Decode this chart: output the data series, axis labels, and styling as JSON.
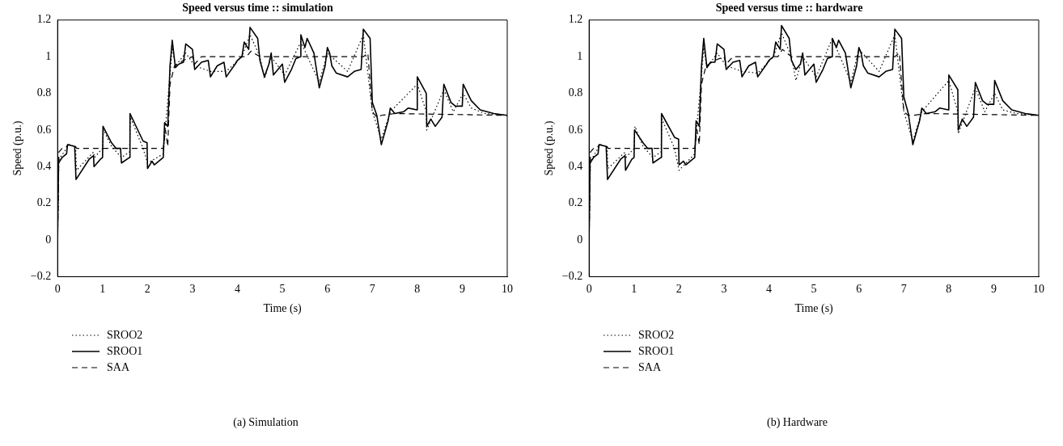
{
  "chart_data": [
    {
      "type": "line",
      "title": "Speed versus time :: simulation",
      "xlabel": "Time (s)",
      "ylabel": "Speed (p.u.)",
      "xlim": [
        0,
        10
      ],
      "xticks": [
        0,
        1,
        2,
        3,
        4,
        5,
        6,
        7,
        8,
        9,
        10
      ],
      "ylim": [
        -0.2,
        1.2
      ],
      "yticks": [
        {
          "value": -0.2,
          "label": "−0.2"
        },
        0,
        0.2,
        0.4,
        0.6,
        0.8,
        1,
        1.2
      ],
      "grid": false,
      "legend": "bottom left",
      "marker": "none",
      "annotations": [
        "(a)  Simulation"
      ],
      "series": [
        {
          "name": "SROO2",
          "color": "#000000",
          "line_style": "dotted",
          "x": [
            0,
            0.03,
            0.2,
            0.25,
            0.4,
            0.42,
            0.8,
            0.82,
            1.0,
            1.02,
            1.2,
            1.42,
            1.6,
            1.62,
            1.9,
            2.0,
            2.35,
            2.4,
            2.5,
            2.55,
            2.62,
            2.85,
            3.05,
            3.4,
            3.75,
            4.1,
            4.28,
            4.5,
            4.6,
            4.75,
            5.05,
            5.41,
            5.82,
            6.0,
            6.45,
            6.8,
            7.0,
            7.2,
            7.4,
            8.0,
            8.2,
            8.21,
            8.59,
            8.8,
            9.02,
            9.2,
            9.5,
            10
          ],
          "values": [
            0,
            0.44,
            0.5,
            0.52,
            0.51,
            0.38,
            0.48,
            0.45,
            0.5,
            0.6,
            0.51,
            0.45,
            0.48,
            0.67,
            0.5,
            0.42,
            0.47,
            0.62,
            0.9,
            1.05,
            0.95,
            1.02,
            0.95,
            0.92,
            0.92,
            1.0,
            1.12,
            1.0,
            0.88,
            1.0,
            0.9,
            1.08,
            0.86,
            1.02,
            0.92,
            1.12,
            0.7,
            0.55,
            0.7,
            0.85,
            0.7,
            0.6,
            0.82,
            0.7,
            0.8,
            0.72,
            0.69,
            0.68
          ]
        },
        {
          "name": "SROO1",
          "color": "#000000",
          "line_style": "solid",
          "x": [
            0,
            0.02,
            0.1,
            0.2,
            0.22,
            0.38,
            0.41,
            0.7,
            0.8,
            0.81,
            0.95,
            1.0,
            1.01,
            1.2,
            1.3,
            1.4,
            1.42,
            1.6,
            1.61,
            1.9,
            1.99,
            2.0,
            2.1,
            2.15,
            2.35,
            2.38,
            2.45,
            2.5,
            2.55,
            2.62,
            2.7,
            2.8,
            2.85,
            3.0,
            3.05,
            3.2,
            3.35,
            3.4,
            3.55,
            3.7,
            3.75,
            3.95,
            4.0,
            4.1,
            4.15,
            4.25,
            4.28,
            4.45,
            4.5,
            4.6,
            4.7,
            4.75,
            4.8,
            4.9,
            5.0,
            5.05,
            5.2,
            5.3,
            5.4,
            5.41,
            5.5,
            5.55,
            5.7,
            5.82,
            5.95,
            6.0,
            6.05,
            6.1,
            6.2,
            6.45,
            6.6,
            6.75,
            6.8,
            6.95,
            7.0,
            7.1,
            7.2,
            7.35,
            7.4,
            7.5,
            7.7,
            7.8,
            7.99,
            8.0,
            8.2,
            8.21,
            8.3,
            8.4,
            8.55,
            8.59,
            8.75,
            8.85,
            9.0,
            9.02,
            9.2,
            9.4,
            9.7,
            10
          ],
          "values": [
            0,
            0.42,
            0.45,
            0.47,
            0.52,
            0.51,
            0.33,
            0.44,
            0.46,
            0.4,
            0.44,
            0.45,
            0.62,
            0.53,
            0.5,
            0.5,
            0.42,
            0.45,
            0.69,
            0.54,
            0.53,
            0.39,
            0.43,
            0.41,
            0.45,
            0.64,
            0.62,
            0.95,
            1.09,
            0.94,
            0.96,
            0.97,
            1.07,
            1.04,
            0.93,
            0.97,
            0.98,
            0.89,
            0.95,
            0.97,
            0.89,
            0.96,
            0.98,
            1.0,
            1.08,
            1.04,
            1.16,
            1.1,
            0.98,
            0.89,
            0.96,
            1.02,
            0.9,
            0.93,
            0.96,
            0.86,
            0.93,
            0.99,
            1.0,
            1.12,
            1.05,
            1.1,
            1.02,
            0.83,
            0.95,
            1.05,
            1.02,
            0.95,
            0.91,
            0.89,
            0.92,
            0.93,
            1.15,
            1.1,
            0.75,
            0.68,
            0.52,
            0.65,
            0.72,
            0.69,
            0.7,
            0.72,
            0.71,
            0.89,
            0.8,
            0.62,
            0.66,
            0.62,
            0.67,
            0.85,
            0.75,
            0.73,
            0.73,
            0.85,
            0.76,
            0.71,
            0.69,
            0.68
          ]
        },
        {
          "name": "SAA",
          "color": "#000000",
          "line_style": "dashed",
          "x": [
            0,
            0.03,
            0.1,
            0.2,
            0.25,
            0.4,
            0.42,
            1.3,
            2.35,
            2.4,
            2.45,
            2.5,
            2.6,
            2.8,
            3.0,
            3.05,
            3.2,
            4.2,
            4.3,
            4.5,
            6.8,
            6.9,
            7.0,
            7.1,
            7.2,
            7.5,
            10
          ],
          "values": [
            0,
            0.48,
            0.5,
            0.51,
            0.52,
            0.51,
            0.5,
            0.5,
            0.5,
            0.6,
            0.51,
            0.85,
            0.95,
            0.98,
            1.0,
            0.96,
            1.0,
            1.0,
            1.03,
            1.0,
            1.0,
            1.02,
            0.7,
            0.67,
            0.68,
            0.69,
            0.68
          ]
        }
      ]
    },
    {
      "type": "line",
      "title": "Speed versus time :: hardware",
      "xlabel": "Time (s)",
      "ylabel": "Speed (p.u.)",
      "xlim": [
        0,
        10
      ],
      "xticks": [
        0,
        1,
        2,
        3,
        4,
        5,
        6,
        7,
        8,
        9,
        10
      ],
      "ylim": [
        -0.2,
        1.2
      ],
      "yticks": [
        {
          "value": -0.2,
          "label": "−0.2"
        },
        0,
        0.2,
        0.4,
        0.6,
        0.8,
        1,
        1.2
      ],
      "grid": false,
      "legend": "bottom left",
      "marker": "none",
      "annotations": [
        "(b)  Hardware"
      ],
      "series": [
        {
          "name": "SROO2",
          "color": "#000000",
          "line_style": "dotted",
          "x": [
            0,
            0.03,
            0.2,
            0.25,
            0.4,
            0.42,
            0.8,
            0.82,
            1.0,
            1.02,
            1.2,
            1.42,
            1.6,
            1.62,
            1.9,
            2.0,
            2.35,
            2.4,
            2.5,
            2.55,
            2.62,
            2.85,
            3.05,
            3.4,
            3.75,
            4.1,
            4.28,
            4.5,
            4.6,
            4.75,
            5.05,
            5.41,
            5.82,
            6.0,
            6.45,
            6.8,
            7.0,
            7.2,
            7.4,
            8.0,
            8.2,
            8.21,
            8.59,
            8.8,
            9.02,
            9.2,
            9.5,
            10
          ],
          "values": [
            0,
            0.43,
            0.5,
            0.52,
            0.51,
            0.39,
            0.48,
            0.45,
            0.5,
            0.62,
            0.51,
            0.45,
            0.48,
            0.66,
            0.5,
            0.38,
            0.47,
            0.63,
            0.9,
            1.05,
            0.94,
            1.02,
            0.95,
            0.92,
            0.91,
            1.0,
            1.13,
            1.0,
            0.87,
            1.0,
            0.89,
            1.1,
            0.86,
            1.04,
            0.92,
            1.12,
            0.7,
            0.54,
            0.7,
            0.87,
            0.7,
            0.58,
            0.83,
            0.7,
            0.8,
            0.71,
            0.69,
            0.68
          ]
        },
        {
          "name": "SROO1",
          "color": "#000000",
          "line_style": "solid",
          "x": [
            0,
            0.02,
            0.1,
            0.2,
            0.22,
            0.38,
            0.41,
            0.7,
            0.8,
            0.81,
            0.95,
            1.0,
            1.01,
            1.2,
            1.3,
            1.4,
            1.42,
            1.6,
            1.61,
            1.9,
            1.99,
            2.0,
            2.1,
            2.15,
            2.35,
            2.38,
            2.45,
            2.5,
            2.55,
            2.62,
            2.7,
            2.8,
            2.85,
            3.0,
            3.05,
            3.2,
            3.35,
            3.4,
            3.55,
            3.7,
            3.75,
            3.95,
            4.0,
            4.1,
            4.15,
            4.25,
            4.28,
            4.45,
            4.5,
            4.6,
            4.7,
            4.75,
            4.8,
            4.9,
            5.0,
            5.05,
            5.2,
            5.3,
            5.4,
            5.41,
            5.5,
            5.55,
            5.7,
            5.82,
            5.95,
            6.0,
            6.05,
            6.1,
            6.2,
            6.45,
            6.6,
            6.75,
            6.8,
            6.95,
            7.0,
            7.1,
            7.2,
            7.35,
            7.4,
            7.5,
            7.7,
            7.8,
            7.99,
            8.0,
            8.2,
            8.21,
            8.3,
            8.4,
            8.55,
            8.59,
            8.75,
            8.85,
            9.0,
            9.02,
            9.2,
            9.4,
            9.7,
            10
          ],
          "values": [
            0,
            0.42,
            0.45,
            0.47,
            0.52,
            0.51,
            0.33,
            0.44,
            0.46,
            0.38,
            0.44,
            0.45,
            0.6,
            0.53,
            0.5,
            0.5,
            0.42,
            0.45,
            0.69,
            0.56,
            0.55,
            0.41,
            0.43,
            0.41,
            0.45,
            0.65,
            0.62,
            0.95,
            1.1,
            0.94,
            0.97,
            0.97,
            1.07,
            1.04,
            0.93,
            0.97,
            0.98,
            0.89,
            0.95,
            0.97,
            0.89,
            0.96,
            0.98,
            1.0,
            1.08,
            1.04,
            1.17,
            1.1,
            0.98,
            0.93,
            0.96,
            1.02,
            0.9,
            0.93,
            0.96,
            0.86,
            0.93,
            0.99,
            1.0,
            1.1,
            1.05,
            1.09,
            1.02,
            0.83,
            0.95,
            1.05,
            1.02,
            0.95,
            0.91,
            0.89,
            0.92,
            0.93,
            1.15,
            1.1,
            0.78,
            0.69,
            0.52,
            0.65,
            0.72,
            0.69,
            0.7,
            0.72,
            0.71,
            0.9,
            0.82,
            0.6,
            0.66,
            0.62,
            0.67,
            0.86,
            0.76,
            0.74,
            0.74,
            0.87,
            0.76,
            0.71,
            0.69,
            0.68
          ]
        },
        {
          "name": "SAA",
          "color": "#000000",
          "line_style": "dashed",
          "x": [
            0,
            0.03,
            0.1,
            0.2,
            0.25,
            0.4,
            0.42,
            1.3,
            2.35,
            2.4,
            2.45,
            2.5,
            2.6,
            2.8,
            3.0,
            3.05,
            3.2,
            4.2,
            4.3,
            4.5,
            6.8,
            6.9,
            7.0,
            7.1,
            7.2,
            7.5,
            10
          ],
          "values": [
            0,
            0.48,
            0.5,
            0.51,
            0.52,
            0.51,
            0.5,
            0.5,
            0.5,
            0.6,
            0.52,
            0.85,
            0.95,
            0.98,
            1.0,
            0.96,
            1.0,
            1.0,
            1.04,
            1.0,
            1.0,
            1.02,
            0.7,
            0.68,
            0.68,
            0.69,
            0.68
          ]
        }
      ]
    }
  ]
}
